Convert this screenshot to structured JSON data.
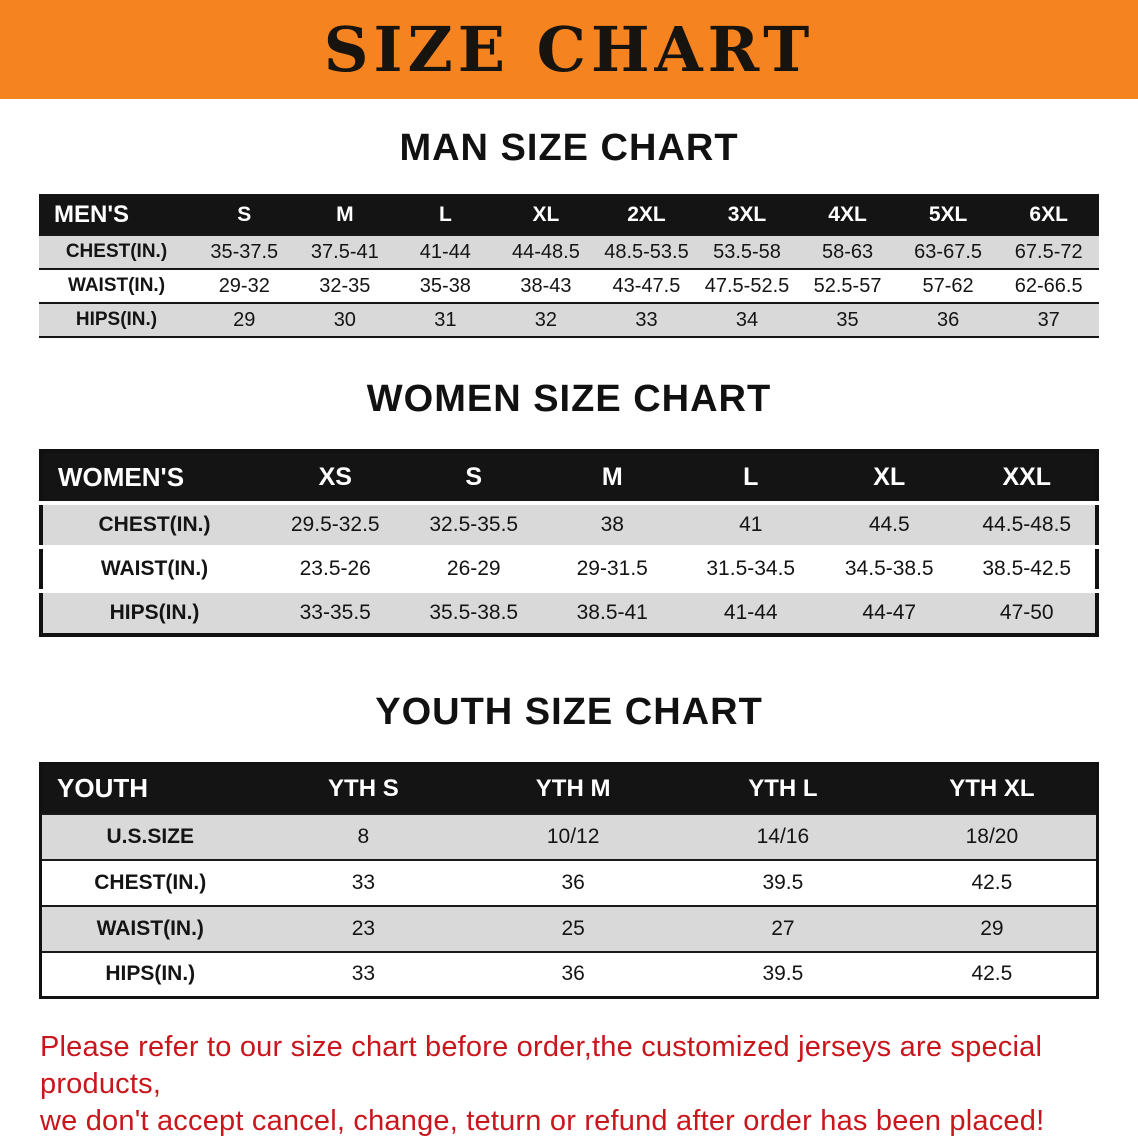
{
  "banner": {
    "title": "SIZE CHART"
  },
  "colors": {
    "banner_bg": "#f5831f",
    "header_bg": "#141414",
    "stripe_gray": "#d9d9d9",
    "footer_red": "#c8161c"
  },
  "sections": [
    {
      "id": "men",
      "heading": "MAN SIZE CHART"
    },
    {
      "id": "women",
      "heading": "WOMEN SIZE CHART"
    },
    {
      "id": "youth",
      "heading": "YOUTH SIZE CHART"
    }
  ],
  "chart_data": [
    {
      "type": "table",
      "id": "men",
      "title": "MAN SIZE CHART",
      "columns": [
        "MEN'S",
        "S",
        "M",
        "L",
        "XL",
        "2XL",
        "3XL",
        "4XL",
        "5XL",
        "6XL"
      ],
      "rows": [
        {
          "label": "CHEST(IN.)",
          "values": [
            "35-37.5",
            "37.5-41",
            "41-44",
            "44-48.5",
            "48.5-53.5",
            "53.5-58",
            "58-63",
            "63-67.5",
            "67.5-72"
          ]
        },
        {
          "label": "WAIST(IN.)",
          "values": [
            "29-32",
            "32-35",
            "35-38",
            "38-43",
            "43-47.5",
            "47.5-52.5",
            "52.5-57",
            "57-62",
            "62-66.5"
          ]
        },
        {
          "label": "HIPS(IN.)",
          "values": [
            "29",
            "30",
            "31",
            "32",
            "33",
            "34",
            "35",
            "36",
            "37"
          ]
        }
      ]
    },
    {
      "type": "table",
      "id": "women",
      "title": "WOMEN SIZE CHART",
      "columns": [
        "WOMEN'S",
        "XS",
        "S",
        "M",
        "L",
        "XL",
        "XXL"
      ],
      "rows": [
        {
          "label": "CHEST(IN.)",
          "values": [
            "29.5-32.5",
            "32.5-35.5",
            "38",
            "41",
            "44.5",
            "44.5-48.5"
          ]
        },
        {
          "label": "WAIST(IN.)",
          "values": [
            "23.5-26",
            "26-29",
            "29-31.5",
            "31.5-34.5",
            "34.5-38.5",
            "38.5-42.5"
          ]
        },
        {
          "label": "HIPS(IN.)",
          "values": [
            "33-35.5",
            "35.5-38.5",
            "38.5-41",
            "41-44",
            "44-47",
            "47-50"
          ]
        }
      ]
    },
    {
      "type": "table",
      "id": "youth",
      "title": "YOUTH SIZE CHART",
      "columns": [
        "YOUTH",
        "YTH S",
        "YTH M",
        "YTH L",
        "YTH XL"
      ],
      "rows": [
        {
          "label": "U.S.SIZE",
          "values": [
            "8",
            "10/12",
            "14/16",
            "18/20"
          ]
        },
        {
          "label": "CHEST(IN.)",
          "values": [
            "33",
            "36",
            "39.5",
            "42.5"
          ]
        },
        {
          "label": "WAIST(IN.)",
          "values": [
            "23",
            "25",
            "27",
            "29"
          ]
        },
        {
          "label": "HIPS(IN.)",
          "values": [
            "33",
            "36",
            "39.5",
            "42.5"
          ]
        }
      ]
    }
  ],
  "footer": {
    "lines": [
      "Please refer to our size chart before order,the customized jerseys are special products,",
      "we don't accept cancel, change, teturn or refund after order has been placed!"
    ]
  }
}
